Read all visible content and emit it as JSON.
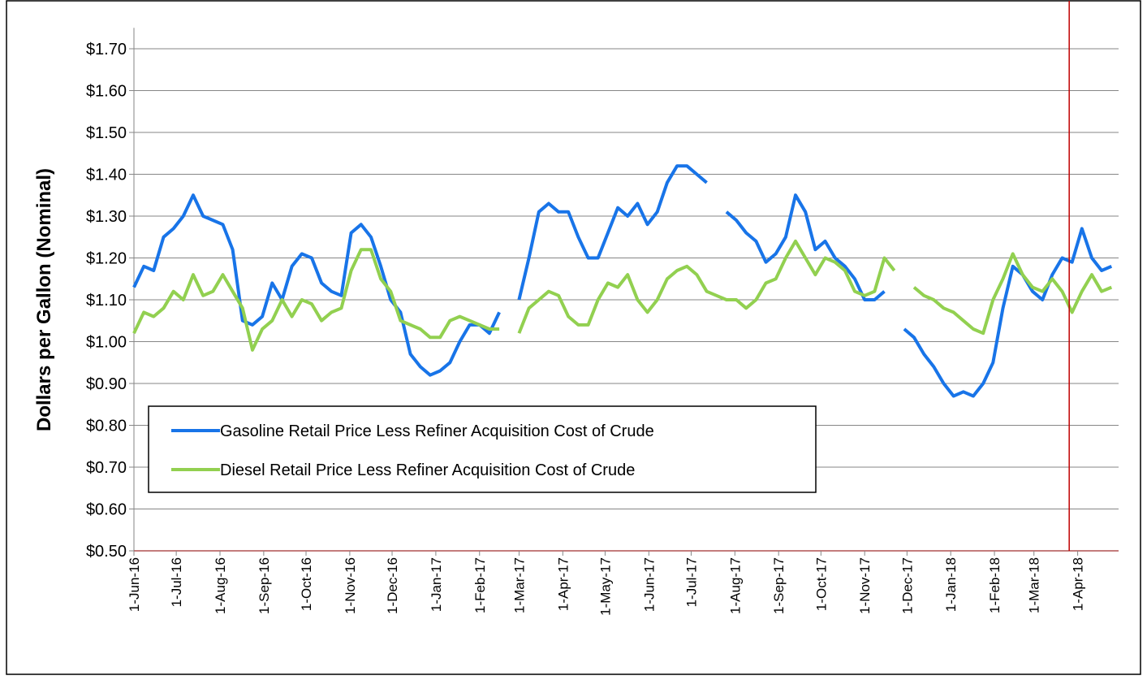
{
  "chart_data": {
    "type": "line",
    "ylabel": "Dollars per Gallon (Nominal)",
    "x": [
      "2016-06-01",
      "2016-06-08",
      "2016-06-15",
      "2016-06-22",
      "2016-06-29",
      "2016-07-06",
      "2016-07-13",
      "2016-07-20",
      "2016-07-27",
      "2016-08-03",
      "2016-08-10",
      "2016-08-17",
      "2016-08-24",
      "2016-08-31",
      "2016-09-07",
      "2016-09-14",
      "2016-09-21",
      "2016-09-28",
      "2016-10-05",
      "2016-10-12",
      "2016-10-19",
      "2016-10-26",
      "2016-11-02",
      "2016-11-09",
      "2016-11-16",
      "2016-11-23",
      "2016-11-30",
      "2016-12-07",
      "2016-12-14",
      "2016-12-21",
      "2016-12-28",
      "2017-01-04",
      "2017-01-11",
      "2017-01-18",
      "2017-01-25",
      "2017-02-01",
      "2017-02-08",
      "2017-02-15",
      "2017-02-22",
      "2017-03-01",
      "2017-03-08",
      "2017-03-15",
      "2017-03-22",
      "2017-03-29",
      "2017-04-05",
      "2017-04-12",
      "2017-04-19",
      "2017-04-26",
      "2017-05-03",
      "2017-05-10",
      "2017-05-17",
      "2017-05-24",
      "2017-05-31",
      "2017-06-07",
      "2017-06-14",
      "2017-06-21",
      "2017-06-28",
      "2017-07-05",
      "2017-07-12",
      "2017-07-19",
      "2017-07-26",
      "2017-08-02",
      "2017-08-09",
      "2017-08-16",
      "2017-08-23",
      "2017-08-30",
      "2017-09-06",
      "2017-09-13",
      "2017-09-20",
      "2017-09-27",
      "2017-10-04",
      "2017-10-11",
      "2017-10-18",
      "2017-10-25",
      "2017-11-01",
      "2017-11-08",
      "2017-11-15",
      "2017-11-22",
      "2017-11-29",
      "2017-12-06",
      "2017-12-13",
      "2017-12-20",
      "2017-12-27",
      "2018-01-03",
      "2018-01-10",
      "2018-01-17",
      "2018-01-24",
      "2018-01-31",
      "2018-02-07",
      "2018-02-14",
      "2018-02-21",
      "2018-02-28",
      "2018-03-07",
      "2018-03-14",
      "2018-03-21",
      "2018-03-28",
      "2018-04-04",
      "2018-04-11",
      "2018-04-18",
      "2018-04-25"
    ],
    "series": [
      {
        "name": "Gasoline Retail Price Less Refiner Acquisition Cost of Crude",
        "color": "#1874e8",
        "values": [
          1.13,
          1.18,
          1.17,
          1.25,
          1.27,
          1.3,
          1.35,
          1.3,
          1.29,
          1.28,
          1.22,
          1.05,
          1.04,
          1.06,
          1.14,
          1.1,
          1.18,
          1.21,
          1.2,
          1.14,
          1.12,
          1.11,
          1.26,
          1.28,
          1.25,
          1.18,
          1.1,
          1.07,
          0.97,
          0.94,
          0.92,
          0.93,
          0.95,
          1.0,
          1.04,
          1.04,
          1.02,
          1.07,
          null,
          1.1,
          1.2,
          1.31,
          1.33,
          1.31,
          1.31,
          1.25,
          1.2,
          1.2,
          1.26,
          1.32,
          1.3,
          1.33,
          1.28,
          1.31,
          1.38,
          1.42,
          1.42,
          1.4,
          1.38,
          null,
          1.31,
          1.29,
          1.26,
          1.24,
          1.19,
          1.21,
          1.25,
          1.35,
          1.31,
          1.22,
          1.24,
          1.2,
          1.18,
          1.15,
          1.1,
          1.1,
          1.12,
          null,
          1.03,
          1.01,
          0.97,
          0.94,
          0.9,
          0.87,
          0.88,
          0.87,
          0.9,
          0.95,
          1.08,
          1.18,
          1.16,
          1.12,
          1.1,
          1.16,
          1.2,
          1.19,
          1.27,
          1.2,
          1.17,
          1.18
        ]
      },
      {
        "name": "Diesel Retail Price Less Refiner Acquisition Cost of Crude",
        "color": "#92d050",
        "values": [
          1.02,
          1.07,
          1.06,
          1.08,
          1.12,
          1.1,
          1.16,
          1.11,
          1.12,
          1.16,
          1.12,
          1.08,
          0.98,
          1.03,
          1.05,
          1.1,
          1.06,
          1.1,
          1.09,
          1.05,
          1.07,
          1.08,
          1.17,
          1.22,
          1.22,
          1.15,
          1.12,
          1.05,
          1.04,
          1.03,
          1.01,
          1.01,
          1.05,
          1.06,
          1.05,
          1.04,
          1.03,
          1.03,
          null,
          1.02,
          1.08,
          1.1,
          1.12,
          1.11,
          1.06,
          1.04,
          1.04,
          1.1,
          1.14,
          1.13,
          1.16,
          1.1,
          1.07,
          1.1,
          1.15,
          1.17,
          1.18,
          1.16,
          1.12,
          1.11,
          1.1,
          1.1,
          1.08,
          1.1,
          1.14,
          1.15,
          1.2,
          1.24,
          1.2,
          1.16,
          1.2,
          1.19,
          1.17,
          1.12,
          1.11,
          1.12,
          1.2,
          1.17,
          null,
          1.13,
          1.11,
          1.1,
          1.08,
          1.07,
          1.05,
          1.03,
          1.02,
          1.1,
          1.15,
          1.21,
          1.16,
          1.13,
          1.12,
          1.15,
          1.12,
          1.07,
          1.12,
          1.16,
          1.12,
          1.13
        ]
      }
    ],
    "xlim": [
      "2016-06-01",
      "2018-04-30"
    ],
    "xticks": [
      {
        "value": "2016-06-01",
        "label": "1-Jun-16"
      },
      {
        "value": "2016-07-01",
        "label": "1-Jul-16"
      },
      {
        "value": "2016-08-01",
        "label": "1-Aug-16"
      },
      {
        "value": "2016-09-01",
        "label": "1-Sep-16"
      },
      {
        "value": "2016-10-01",
        "label": "1-Oct-16"
      },
      {
        "value": "2016-11-01",
        "label": "1-Nov-16"
      },
      {
        "value": "2016-12-01",
        "label": "1-Dec-16"
      },
      {
        "value": "2017-01-01",
        "label": "1-Jan-17"
      },
      {
        "value": "2017-02-01",
        "label": "1-Feb-17"
      },
      {
        "value": "2017-03-01",
        "label": "1-Mar-17"
      },
      {
        "value": "2017-04-01",
        "label": "1-Apr-17"
      },
      {
        "value": "2017-05-01",
        "label": "1-May-17"
      },
      {
        "value": "2017-06-01",
        "label": "1-Jun-17"
      },
      {
        "value": "2017-07-01",
        "label": "1-Jul-17"
      },
      {
        "value": "2017-08-01",
        "label": "1-Aug-17"
      },
      {
        "value": "2017-09-01",
        "label": "1-Sep-17"
      },
      {
        "value": "2017-10-01",
        "label": "1-Oct-17"
      },
      {
        "value": "2017-11-01",
        "label": "1-Nov-17"
      },
      {
        "value": "2017-12-01",
        "label": "1-Dec-17"
      },
      {
        "value": "2018-01-01",
        "label": "1-Jan-18"
      },
      {
        "value": "2018-02-01",
        "label": "1-Feb-18"
      },
      {
        "value": "2018-03-01",
        "label": "1-Mar-18"
      },
      {
        "value": "2018-04-01",
        "label": "1-Apr-18"
      }
    ],
    "ylim": [
      0.5,
      1.75
    ],
    "yticks": [
      {
        "value": 0.5,
        "label": "$0.50"
      },
      {
        "value": 0.6,
        "label": "$0.60"
      },
      {
        "value": 0.7,
        "label": "$0.70"
      },
      {
        "value": 0.8,
        "label": "$0.80"
      },
      {
        "value": 0.9,
        "label": "$0.90"
      },
      {
        "value": 1.0,
        "label": "$1.00"
      },
      {
        "value": 1.1,
        "label": "$1.10"
      },
      {
        "value": 1.2,
        "label": "$1.20"
      },
      {
        "value": 1.3,
        "label": "$1.30"
      },
      {
        "value": 1.4,
        "label": "$1.40"
      },
      {
        "value": 1.5,
        "label": "$1.50"
      },
      {
        "value": 1.6,
        "label": "$1.60"
      },
      {
        "value": 1.7,
        "label": "$1.70"
      }
    ],
    "grid": true,
    "legend_loc": "lower left",
    "vline": {
      "x": "2018-03-26",
      "color": "#c00000"
    }
  }
}
